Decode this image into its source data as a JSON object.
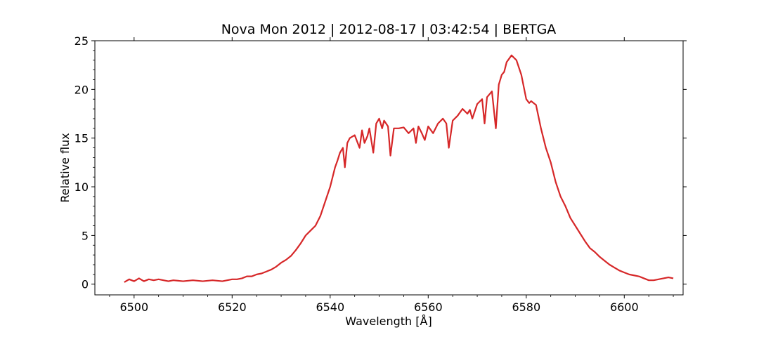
{
  "chart_data": {
    "type": "line",
    "title": "Nova Mon 2012 | 2012-08-17 | 03:42:54 | BERTGA",
    "xlabel": "Wavelength [Å]",
    "ylabel": "Relative flux",
    "xlim": [
      6492,
      6612
    ],
    "ylim": [
      -1.1,
      25
    ],
    "xticks": [
      6500,
      6520,
      6540,
      6560,
      6580,
      6600
    ],
    "yticks": [
      0,
      5,
      10,
      15,
      20,
      25
    ],
    "grid": false,
    "series": [
      {
        "color": "#d62728",
        "x": [
          6498,
          6499,
          6500,
          6501,
          6502,
          6503,
          6504,
          6505,
          6506,
          6507,
          6508,
          6510,
          6512,
          6514,
          6516,
          6518,
          6520,
          6521,
          6522,
          6523,
          6524,
          6525,
          6526,
          6527,
          6528,
          6529,
          6530,
          6531,
          6532,
          6533,
          6534,
          6535,
          6536,
          6537,
          6538,
          6539,
          6540,
          6541,
          6541.5,
          6542,
          6542.6,
          6543,
          6543.5,
          6544,
          6545,
          6546,
          6546.5,
          6547,
          6547.6,
          6548,
          6548.8,
          6549.4,
          6550,
          6550.6,
          6551,
          6551.8,
          6552.3,
          6553,
          6554,
          6555,
          6556,
          6557,
          6557.5,
          6558,
          6558.7,
          6559.3,
          6560,
          6561,
          6562,
          6563,
          6563.7,
          6564.2,
          6565,
          6566,
          6567,
          6568,
          6568.5,
          6569,
          6570,
          6571,
          6571.5,
          6572,
          6572.5,
          6573,
          6573.8,
          6574.4,
          6575,
          6575.5,
          6576,
          6577,
          6578,
          6579,
          6580,
          6580.6,
          6581,
          6582,
          6583,
          6584,
          6585,
          6586,
          6587,
          6588,
          6589,
          6590,
          6591,
          6592,
          6593,
          6594,
          6595,
          6596,
          6597,
          6598,
          6599,
          6600,
          6601,
          6602,
          6603,
          6604,
          6605,
          6606,
          6607,
          6608,
          6609,
          6610
        ],
        "y": [
          0.2,
          0.5,
          0.3,
          0.6,
          0.3,
          0.5,
          0.4,
          0.5,
          0.4,
          0.3,
          0.4,
          0.3,
          0.4,
          0.3,
          0.4,
          0.3,
          0.5,
          0.5,
          0.6,
          0.8,
          0.8,
          1.0,
          1.1,
          1.3,
          1.5,
          1.8,
          2.2,
          2.5,
          2.9,
          3.5,
          4.2,
          5.0,
          5.5,
          6.0,
          7.0,
          8.5,
          10.0,
          12.0,
          12.7,
          13.5,
          14.0,
          12.0,
          14.5,
          15.0,
          15.3,
          14.0,
          15.8,
          14.5,
          15.2,
          16.0,
          13.5,
          16.5,
          17.0,
          16.0,
          16.8,
          16.2,
          13.2,
          16.0,
          16.0,
          16.1,
          15.5,
          16.0,
          14.5,
          16.2,
          15.5,
          14.8,
          16.2,
          15.5,
          16.5,
          17.0,
          16.5,
          14.0,
          16.8,
          17.3,
          18.0,
          17.5,
          17.9,
          17.0,
          18.5,
          19.0,
          16.5,
          19.2,
          19.5,
          19.8,
          16.0,
          20.5,
          21.5,
          21.8,
          22.8,
          23.5,
          23.0,
          21.5,
          19.0,
          18.6,
          18.8,
          18.4,
          16.0,
          14.0,
          12.5,
          10.5,
          9.0,
          8.0,
          6.8,
          6.0,
          5.2,
          4.4,
          3.7,
          3.3,
          2.8,
          2.4,
          2.0,
          1.7,
          1.4,
          1.2,
          1.0,
          0.9,
          0.8,
          0.6,
          0.4,
          0.4,
          0.5,
          0.6,
          0.7,
          0.6
        ]
      }
    ]
  }
}
